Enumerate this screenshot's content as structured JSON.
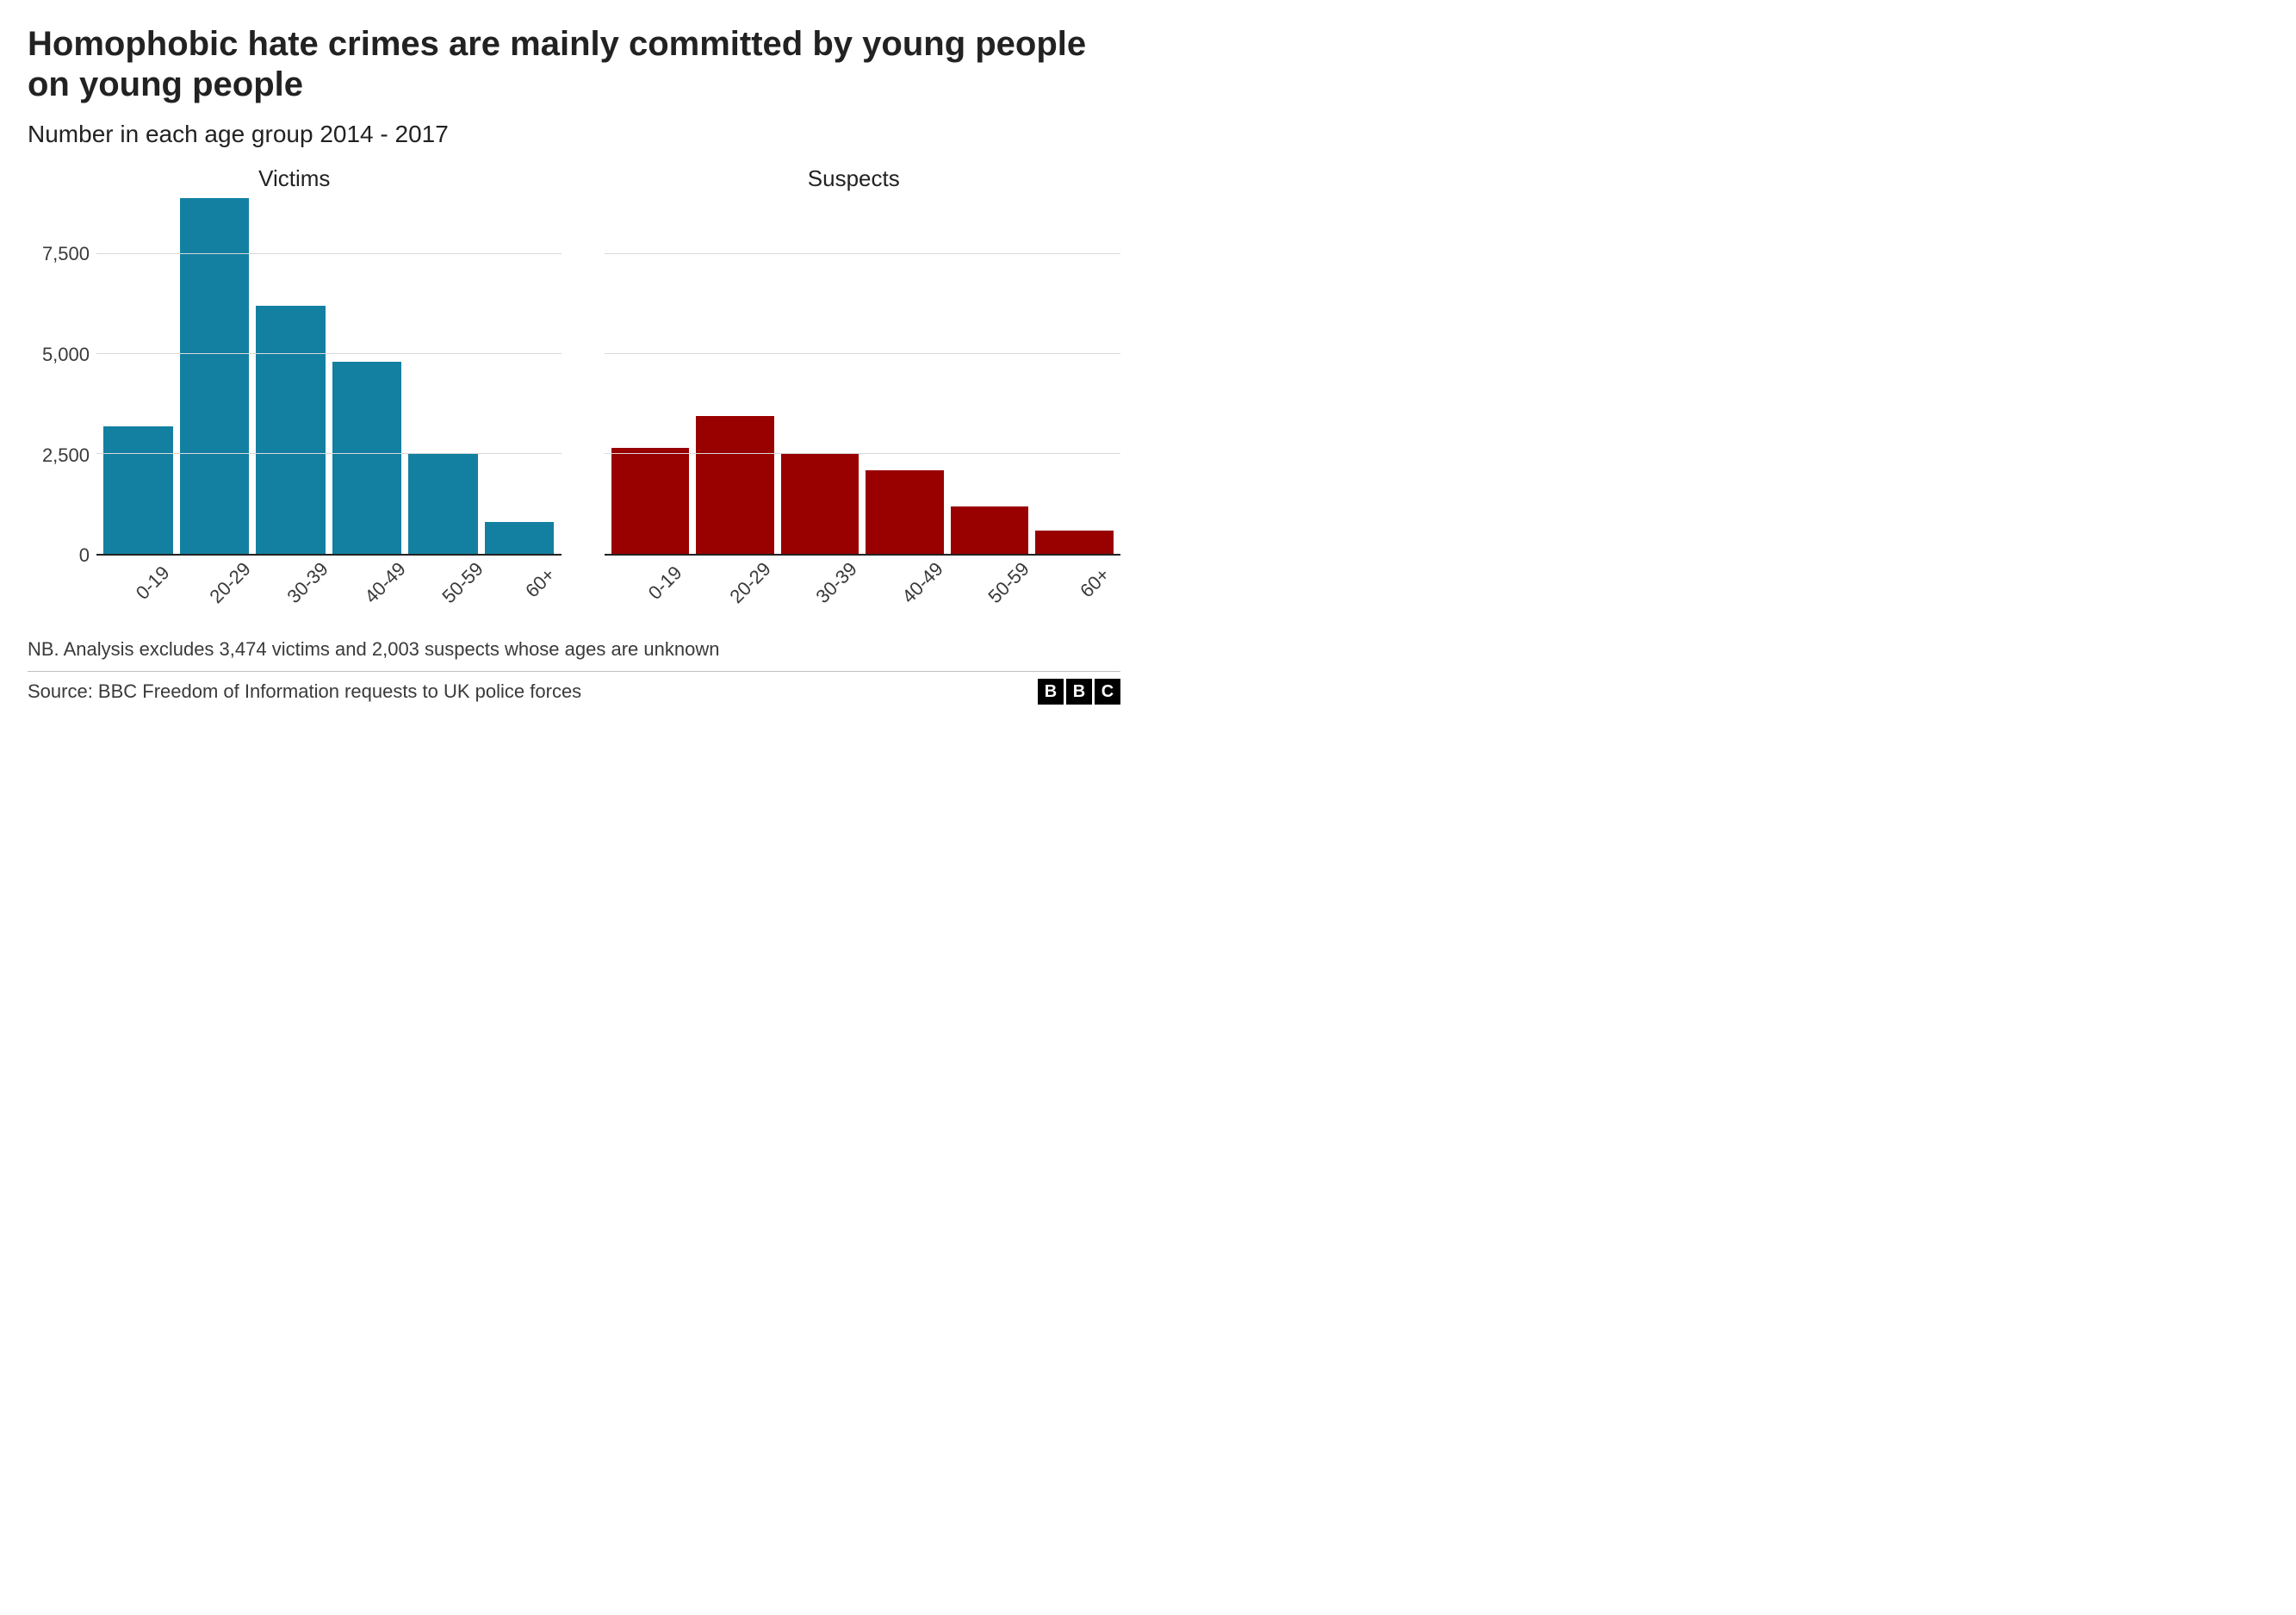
{
  "title": "Homophobic hate crimes are mainly committed by young people on young people",
  "subtitle": "Number in each age group 2014 - 2017",
  "chart": {
    "type": "bar",
    "panels": [
      {
        "label": "Victims",
        "values": [
          3200,
          8900,
          6200,
          4800,
          2500,
          800
        ],
        "color": "#1380a1"
      },
      {
        "label": "Suspects",
        "values": [
          2650,
          3450,
          2500,
          2100,
          1200,
          600
        ],
        "color": "#990000"
      }
    ],
    "categories": [
      "0-19",
      "20-29",
      "30-39",
      "40-49",
      "50-59",
      "60+"
    ],
    "ylim": [
      0,
      9000
    ],
    "yticks": [
      0,
      2500,
      5000,
      7500
    ],
    "ytick_labels": [
      "0",
      "2,500",
      "5,000",
      "7,500"
    ],
    "grid_color": "#d9d9d9",
    "axis_color": "#222222",
    "background_color": "#ffffff",
    "title_fontsize": 40,
    "subtitle_fontsize": 28,
    "panel_label_fontsize": 26,
    "tick_fontsize": 22,
    "bar_gap_ratio": 0.12
  },
  "note": "NB. Analysis excludes 3,474 victims and 2,003 suspects whose ages are unknown",
  "source": "Source: BBC Freedom of Information requests to UK police forces",
  "logo_letters": [
    "B",
    "B",
    "C"
  ]
}
